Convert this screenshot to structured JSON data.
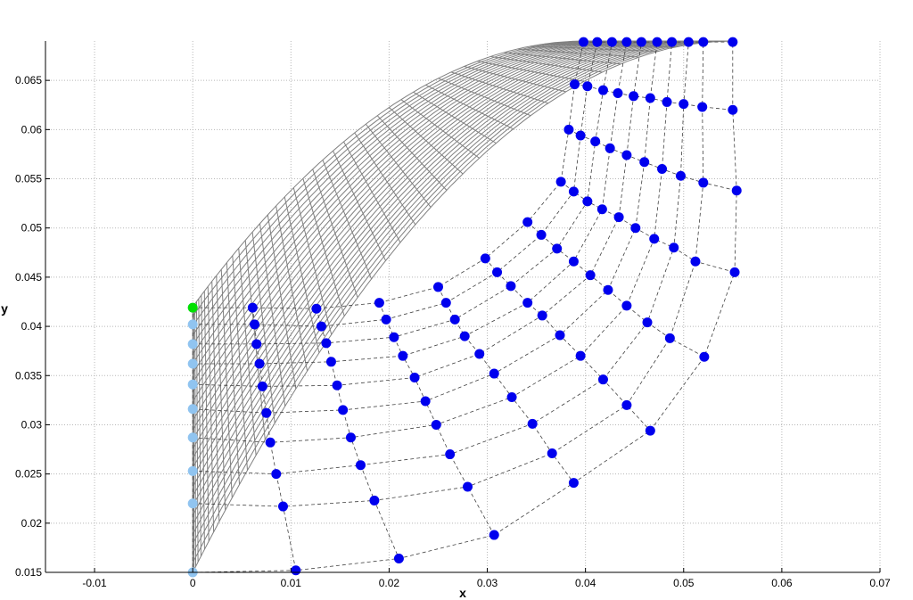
{
  "chart_data": {
    "type": "scatter",
    "title": "",
    "xlabel": "x",
    "ylabel": "y",
    "xlim": [
      -0.015,
      0.07
    ],
    "ylim": [
      0.015,
      0.069
    ],
    "grid": true,
    "x_ticks": [
      -0.01,
      0,
      0.01,
      0.02,
      0.03,
      0.04,
      0.05,
      0.06,
      0.07
    ],
    "x_tick_labels": [
      "-0.01",
      "0",
      "0.01",
      "0.02",
      "0.03",
      "0.04",
      "0.05",
      "0.06",
      "0.07"
    ],
    "y_ticks": [
      0.015,
      0.02,
      0.025,
      0.03,
      0.035,
      0.04,
      0.045,
      0.05,
      0.055,
      0.06,
      0.065
    ],
    "y_tick_labels": [
      "0.015",
      "0.02",
      "0.025",
      "0.03",
      "0.035",
      "0.04",
      "0.045",
      "0.05",
      "0.055",
      "0.06",
      "0.065"
    ],
    "mesh": {
      "inlet_x": 0.0,
      "inner_y": 0.042,
      "outer_y": 0.015,
      "outlet_y": 0.069,
      "outlet_x_inner": 0.04,
      "outlet_x_outer": 0.055,
      "color": "#808080"
    },
    "points_columns": [
      {
        "color": "#90c4f0",
        "points": [
          [
            0,
            0.0419
          ],
          [
            0,
            0.0402
          ],
          [
            0,
            0.0382
          ],
          [
            0,
            0.0362
          ],
          [
            0,
            0.0341
          ],
          [
            0,
            0.0316
          ],
          [
            0,
            0.0287
          ],
          [
            0,
            0.0253
          ],
          [
            0,
            0.022
          ],
          [
            0,
            0.015
          ]
        ]
      },
      {
        "color": "#0000ee",
        "points": [
          [
            0.0061,
            0.0419
          ],
          [
            0.0063,
            0.0402
          ],
          [
            0.0065,
            0.0382
          ],
          [
            0.0068,
            0.0362
          ],
          [
            0.0071,
            0.0339
          ],
          [
            0.0075,
            0.0312
          ],
          [
            0.0079,
            0.0282
          ],
          [
            0.0085,
            0.025
          ],
          [
            0.0092,
            0.0217
          ],
          [
            0.0105,
            0.0152
          ]
        ]
      },
      {
        "color": "#0000ee",
        "points": [
          [
            0.0126,
            0.0418
          ],
          [
            0.0131,
            0.04
          ],
          [
            0.0136,
            0.0383
          ],
          [
            0.0141,
            0.0364
          ],
          [
            0.0147,
            0.034
          ],
          [
            0.0153,
            0.0315
          ],
          [
            0.0161,
            0.0287
          ],
          [
            0.0171,
            0.0259
          ],
          [
            0.0185,
            0.0223
          ],
          [
            0.021,
            0.0164
          ]
        ]
      },
      {
        "color": "#0000ee",
        "points": [
          [
            0.019,
            0.0424
          ],
          [
            0.0197,
            0.0407
          ],
          [
            0.0205,
            0.0389
          ],
          [
            0.0214,
            0.037
          ],
          [
            0.0226,
            0.0348
          ],
          [
            0.0237,
            0.0324
          ],
          [
            0.0248,
            0.03
          ],
          [
            0.0262,
            0.027
          ],
          [
            0.028,
            0.0237
          ],
          [
            0.0307,
            0.0188
          ]
        ]
      },
      {
        "color": "#0000ee",
        "points": [
          [
            0.025,
            0.044
          ],
          [
            0.0258,
            0.0424
          ],
          [
            0.0267,
            0.0407
          ],
          [
            0.0277,
            0.039
          ],
          [
            0.0292,
            0.0372
          ],
          [
            0.0307,
            0.0352
          ],
          [
            0.0325,
            0.0328
          ],
          [
            0.0346,
            0.0301
          ],
          [
            0.0366,
            0.0271
          ],
          [
            0.0388,
            0.0241
          ]
        ]
      },
      {
        "color": "#0000ee",
        "points": [
          [
            0.0298,
            0.0469
          ],
          [
            0.031,
            0.0455
          ],
          [
            0.0324,
            0.0441
          ],
          [
            0.0341,
            0.0424
          ],
          [
            0.0356,
            0.0411
          ],
          [
            0.0374,
            0.0391
          ],
          [
            0.0395,
            0.037
          ],
          [
            0.0418,
            0.0346
          ],
          [
            0.0442,
            0.032
          ],
          [
            0.0466,
            0.0294
          ]
        ]
      },
      {
        "color": "#0000ee",
        "points": [
          [
            0.0341,
            0.0506
          ],
          [
            0.0355,
            0.0493
          ],
          [
            0.0371,
            0.0479
          ],
          [
            0.0388,
            0.0466
          ],
          [
            0.0405,
            0.0452
          ],
          [
            0.0423,
            0.0437
          ],
          [
            0.0442,
            0.0421
          ],
          [
            0.0463,
            0.0404
          ],
          [
            0.0486,
            0.0388
          ],
          [
            0.0521,
            0.0369
          ]
        ]
      },
      {
        "color": "#0000ee",
        "points": [
          [
            0.0375,
            0.0547
          ],
          [
            0.0388,
            0.0537
          ],
          [
            0.0402,
            0.0527
          ],
          [
            0.0417,
            0.0519
          ],
          [
            0.0434,
            0.0511
          ],
          [
            0.0451,
            0.05
          ],
          [
            0.047,
            0.0489
          ],
          [
            0.049,
            0.048
          ],
          [
            0.0512,
            0.0466
          ],
          [
            0.0552,
            0.0455
          ]
        ]
      },
      {
        "color": "#0000ee",
        "points": [
          [
            0.0383,
            0.06
          ],
          [
            0.0395,
            0.0594
          ],
          [
            0.041,
            0.0588
          ],
          [
            0.0425,
            0.0581
          ],
          [
            0.0442,
            0.0574
          ],
          [
            0.046,
            0.0567
          ],
          [
            0.0478,
            0.056
          ],
          [
            0.0497,
            0.0553
          ],
          [
            0.052,
            0.0546
          ],
          [
            0.0554,
            0.0538
          ]
        ]
      },
      {
        "color": "#0000ee",
        "points": [
          [
            0.0389,
            0.0646
          ],
          [
            0.0402,
            0.0644
          ],
          [
            0.0418,
            0.064
          ],
          [
            0.0433,
            0.0637
          ],
          [
            0.0449,
            0.0634
          ],
          [
            0.0466,
            0.0632
          ],
          [
            0.0483,
            0.0628
          ],
          [
            0.05,
            0.0626
          ],
          [
            0.0519,
            0.0623
          ],
          [
            0.055,
            0.062
          ]
        ]
      },
      {
        "color": "#0000ee",
        "points": [
          [
            0.0398,
            0.0689
          ],
          [
            0.0412,
            0.0689
          ],
          [
            0.0427,
            0.0689
          ],
          [
            0.0442,
            0.0689
          ],
          [
            0.0457,
            0.0689
          ],
          [
            0.0473,
            0.0689
          ],
          [
            0.0488,
            0.0689
          ],
          [
            0.0505,
            0.0689
          ],
          [
            0.052,
            0.0689
          ],
          [
            0.055,
            0.0689
          ]
        ]
      }
    ],
    "highlight_point": {
      "x": 0,
      "y": 0.0419,
      "color": "#00e000"
    }
  }
}
